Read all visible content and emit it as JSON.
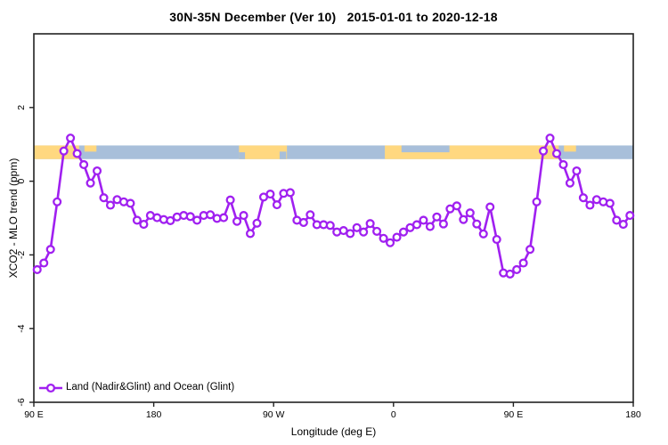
{
  "title": "30N-35N December (Ver 10)   2015-01-01 to 2020-12-18",
  "legend": {
    "label": "Land (Nadir&Glint) and Ocean (Glint)"
  },
  "colors": {
    "line": "#A020F0",
    "marker_fill": "#FFFFFF",
    "ocean_band": "#A8BFDA",
    "land_band": "#FFD880",
    "axis": "#222222",
    "text": "#000000"
  },
  "chart_data": {
    "type": "line",
    "title": "30N-35N December (Ver 10)   2015-01-01 to 2020-12-18",
    "xlabel": "Longitude (deg E)",
    "ylabel": "XCO2 - MLO trend (ppm)",
    "xlim": [
      90,
      540
    ],
    "ylim": [
      -6,
      4
    ],
    "grid": false,
    "legend_position": "bottom-left",
    "x_ticks": [
      {
        "pos": 90,
        "label": "90 E"
      },
      {
        "pos": 180,
        "label": "180"
      },
      {
        "pos": 270,
        "label": "90 W"
      },
      {
        "pos": 360,
        "label": "0"
      },
      {
        "pos": 450,
        "label": "90 E"
      },
      {
        "pos": 540,
        "label": "180"
      }
    ],
    "y_ticks": [
      {
        "pos": 2,
        "label": "2"
      },
      {
        "pos": 0,
        "label": "0"
      },
      {
        "pos": -2,
        "label": "-2"
      },
      {
        "pos": -4,
        "label": "-4"
      },
      {
        "pos": -6,
        "label": "-6"
      }
    ],
    "map_band": {
      "y_range": [
        0.6,
        0.97
      ],
      "land_segments_lon": [
        [
          90,
          124
        ],
        [
          244,
          280
        ],
        [
          353.5,
          484
        ]
      ],
      "patches": [
        {
          "lon": [
            128,
            137
          ],
          "frac": [
            0.0,
            0.45
          ],
          "surface": "land"
        },
        {
          "lon": [
            488,
            497
          ],
          "frac": [
            0.0,
            0.45
          ],
          "surface": "land"
        },
        {
          "lon": [
            366,
            402
          ],
          "frac": [
            0.0,
            0.5
          ],
          "surface": "ocean"
        },
        {
          "lon": [
            244,
            248.5
          ],
          "frac": [
            0.5,
            1.0
          ],
          "surface": "ocean"
        },
        {
          "lon": [
            274.5,
            279.5
          ],
          "frac": [
            0.45,
            1.0
          ],
          "surface": "ocean"
        }
      ]
    },
    "series": [
      {
        "name": "Land (Nadir&Glint) and Ocean (Glint)",
        "x": [
          92.5,
          97.5,
          102.5,
          107.5,
          112.5,
          117.5,
          122.5,
          127.5,
          132.5,
          137.5,
          142.5,
          147.5,
          152.5,
          157.5,
          162.5,
          167.5,
          172.5,
          177.5,
          182.5,
          187.5,
          192.5,
          197.5,
          202.5,
          207.5,
          212.5,
          217.5,
          222.5,
          227.5,
          232.5,
          237.5,
          242.5,
          247.5,
          252.5,
          257.5,
          262.5,
          267.5,
          272.5,
          277.5,
          282.5,
          287.5,
          292.5,
          297.5,
          302.5,
          307.5,
          312.5,
          317.5,
          322.5,
          327.5,
          332.5,
          337.5,
          342.5,
          347.5,
          352.5,
          357.5,
          362.5,
          367.5,
          372.5,
          377.5,
          382.5,
          387.5,
          392.5,
          397.5,
          402.5,
          407.5,
          412.5,
          417.5,
          422.5,
          427.5,
          432.5,
          437.5,
          442.5,
          447.5,
          452.5,
          457.5,
          462.5,
          467.5,
          472.5,
          477.5,
          482.5,
          487.5,
          492.5,
          497.5,
          502.5,
          507.5,
          512.5,
          517.5,
          522.5,
          527.5,
          532.5,
          537.5
        ],
        "y": [
          -2.4,
          -2.22,
          -1.85,
          -0.56,
          0.82,
          1.17,
          0.75,
          0.45,
          -0.05,
          0.28,
          -0.45,
          -0.65,
          -0.5,
          -0.56,
          -0.6,
          -1.06,
          -1.17,
          -0.93,
          -0.99,
          -1.04,
          -1.07,
          -0.97,
          -0.93,
          -0.96,
          -1.06,
          -0.93,
          -0.91,
          -1.01,
          -0.99,
          -0.51,
          -1.09,
          -0.93,
          -1.42,
          -1.14,
          -0.43,
          -0.35,
          -0.64,
          -0.33,
          -0.31,
          -1.06,
          -1.12,
          -0.91,
          -1.18,
          -1.18,
          -1.2,
          -1.38,
          -1.34,
          -1.42,
          -1.26,
          -1.38,
          -1.15,
          -1.36,
          -1.55,
          -1.67,
          -1.52,
          -1.38,
          -1.26,
          -1.18,
          -1.06,
          -1.23,
          -0.97,
          -1.16,
          -0.75,
          -0.67,
          -1.04,
          -0.86,
          -1.16,
          -1.43,
          -0.7,
          -1.58,
          -2.49,
          -2.52,
          -2.4,
          -2.22,
          -1.85,
          -0.56,
          0.82,
          1.17,
          0.75,
          0.45,
          -0.05,
          0.28,
          -0.45,
          -0.65,
          -0.5,
          -0.56,
          -0.6,
          -1.06,
          -1.17,
          -0.93
        ]
      }
    ]
  }
}
